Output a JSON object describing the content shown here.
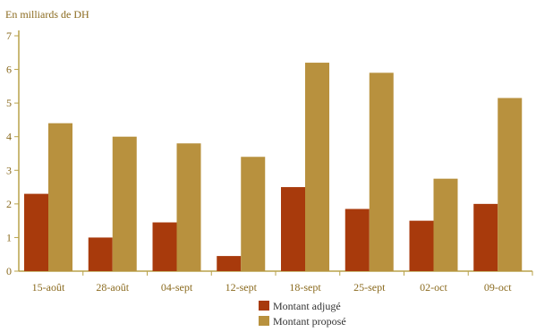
{
  "chart_data": {
    "type": "bar",
    "title": "",
    "ylabel": "En milliards de DH",
    "xlabel": "",
    "categories": [
      "15-août",
      "28-août",
      "04-sept",
      "12-sept",
      "18-sept",
      "25-sept",
      "02-oct",
      "09-oct"
    ],
    "series": [
      {
        "name": "Montant adjugé",
        "values": [
          2.3,
          1.0,
          1.45,
          0.45,
          2.5,
          1.85,
          1.5,
          2.0
        ],
        "color": "#a83a0c"
      },
      {
        "name": "Montant proposé",
        "values": [
          4.4,
          4.0,
          3.8,
          3.4,
          6.2,
          5.9,
          2.75,
          5.15
        ],
        "color": "#b8913e"
      }
    ],
    "ylim": [
      0,
      7
    ],
    "yticks": [
      0,
      1,
      2,
      3,
      4,
      5,
      6,
      7
    ],
    "grid": false,
    "legend_position": "bottom-center",
    "axis_color": "#b8a24a"
  }
}
